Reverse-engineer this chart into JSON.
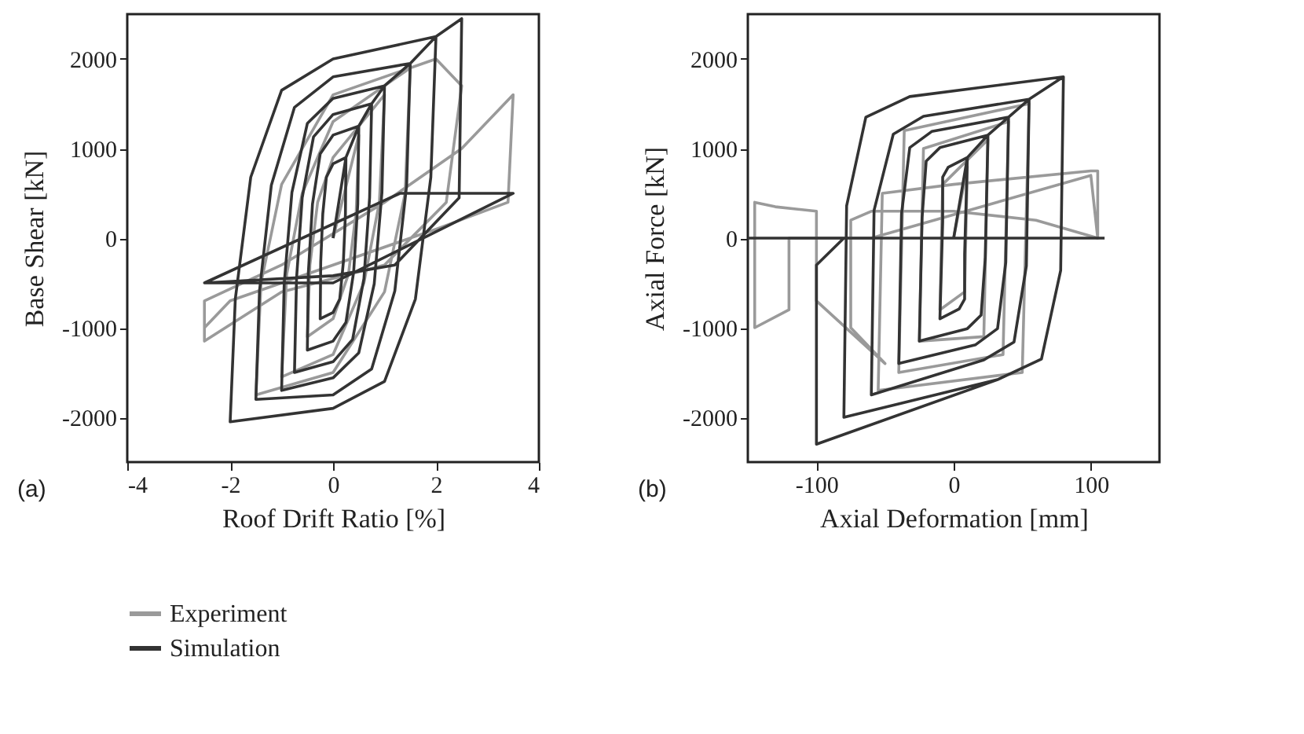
{
  "chart_data": [
    {
      "type": "line",
      "xlabel": "Roof Drift Ratio [%]",
      "ylabel": "Base Shear [kN]",
      "annotations": [
        "(a)"
      ],
      "xlim": [
        -4,
        4
      ],
      "ylim": [
        -2500,
        2500
      ],
      "xticks": [
        -4,
        -2,
        0,
        2,
        4
      ],
      "yticks": [
        -2000,
        -1000,
        0,
        1000,
        2000
      ],
      "grid": false,
      "legend": "bottom",
      "marker": "none",
      "line_style": "solid",
      "series": [
        {
          "name": "Experiment",
          "color": "#9a9a9a",
          "x": [
            0,
            0.5,
            0.45,
            0.3,
            0,
            -0.5,
            -0.45,
            -0.3,
            0,
            1,
            0.9,
            0.6,
            0,
            -1,
            -0.9,
            -0.6,
            0,
            1.5,
            1.4,
            1,
            0,
            -1.5,
            -1.4,
            -1,
            0,
            2,
            2.5,
            2.2,
            1,
            -1,
            -2.5,
            -2.5,
            -1,
            1,
            2.5,
            3,
            3.5,
            3.4,
            2,
            0,
            -2,
            -2.5
          ],
          "values": [
            0,
            1150,
            300,
            -400,
            -900,
            -1100,
            -300,
            400,
            900,
            1600,
            400,
            -500,
            -1300,
            -1550,
            -400,
            500,
            1300,
            1900,
            500,
            -600,
            -1500,
            -1750,
            -500,
            600,
            1600,
            2000,
            1700,
            400,
            -300,
            -600,
            -1150,
            -700,
            -300,
            400,
            1000,
            1300,
            1600,
            400,
            100,
            -300,
            -700,
            -1000
          ]
        },
        {
          "name": "Simulation",
          "color": "#333333",
          "x": [
            0,
            0.25,
            0.24,
            0.2,
            0.13,
            0,
            -0.25,
            -0.24,
            -0.2,
            -0.13,
            0,
            0.25,
            0.5,
            0.48,
            0.4,
            0.25,
            0,
            -0.5,
            -0.48,
            -0.4,
            -0.25,
            0,
            0.5,
            0.75,
            0.71,
            0.6,
            0.38,
            0,
            -0.75,
            -0.71,
            -0.6,
            -0.38,
            0,
            0.75,
            1,
            0.95,
            0.8,
            0.5,
            0,
            -1,
            -0.95,
            -0.8,
            -0.5,
            0,
            1,
            1.5,
            1.43,
            1.2,
            0.75,
            0,
            -1.5,
            -1.43,
            -1.2,
            -0.75,
            0,
            1.5,
            2,
            1.9,
            1.6,
            1,
            0,
            -2,
            -1.9,
            -1.6,
            -1,
            0,
            2,
            2.5,
            2.45,
            1.2,
            0,
            -2.5,
            0,
            3.5,
            1.3,
            -2.5
          ],
          "values": [
            0,
            900,
            270,
            -270,
            -680,
            -830,
            -900,
            -270,
            270,
            680,
            830,
            900,
            1250,
            380,
            -380,
            -940,
            -1150,
            -1250,
            -380,
            380,
            940,
            1150,
            1250,
            1500,
            450,
            -450,
            -1130,
            -1380,
            -1500,
            -450,
            450,
            1130,
            1380,
            1500,
            1700,
            510,
            -510,
            -1280,
            -1560,
            -1700,
            -510,
            510,
            1280,
            1560,
            1700,
            1950,
            590,
            -590,
            -1460,
            -1750,
            -1800,
            -590,
            590,
            1460,
            1800,
            1950,
            2250,
            680,
            -680,
            -1600,
            -1900,
            -2050,
            -680,
            680,
            1650,
            2000,
            2250,
            2450,
            450,
            -300,
            -420,
            -500,
            -500,
            500,
            500,
            -500
          ]
        }
      ]
    },
    {
      "type": "line",
      "xlabel": "Axial Deformation [mm]",
      "ylabel": "Axial Force [kN]",
      "annotations": [
        "(b)"
      ],
      "xlim": [
        -150,
        150
      ],
      "ylim": [
        -2500,
        2500
      ],
      "xticks": [
        -100,
        0,
        100
      ],
      "yticks": [
        -2000,
        -1000,
        0,
        1000,
        2000
      ],
      "grid": false,
      "legend": "bottom",
      "marker": "none",
      "line_style": "solid",
      "series": [
        {
          "name": "Experiment",
          "color": "#9a9a9a",
          "x": [
            0,
            10,
            8,
            -10,
            -8,
            25,
            22,
            -25,
            -22,
            40,
            36,
            -40,
            -36,
            55,
            50,
            -55,
            -52,
            0,
            100,
            105,
            105,
            60,
            0,
            -60,
            -75,
            -75,
            -50,
            -100,
            -100,
            -130,
            -145,
            -145,
            -120,
            -120,
            -60,
            100,
            105
          ],
          "values": [
            0,
            800,
            -600,
            -800,
            600,
            1100,
            -1100,
            -1150,
            1000,
            1300,
            -1300,
            -1500,
            1200,
            1500,
            -1500,
            -1700,
            500,
            600,
            750,
            750,
            0,
            200,
            300,
            300,
            200,
            -1000,
            -1400,
            -700,
            300,
            350,
            400,
            -1000,
            -800,
            0,
            0,
            700,
            0
          ]
        },
        {
          "name": "Simulation",
          "color": "#333333",
          "x": [
            0,
            10,
            8,
            8,
            4,
            -10,
            -8,
            -8,
            -4,
            10,
            25,
            23,
            20,
            10,
            -25,
            -23,
            -20,
            -10,
            25,
            40,
            38,
            32,
            16,
            -40,
            -38,
            -32,
            -16,
            40,
            55,
            53,
            44,
            22,
            -60,
            -58,
            -44,
            -22,
            55,
            80,
            78,
            64,
            32,
            -80,
            -78,
            -64,
            -32,
            80,
            78,
            64,
            32,
            -100,
            -100,
            -80,
            -150,
            110
          ],
          "values": [
            0,
            900,
            -180,
            -680,
            -790,
            -900,
            180,
            680,
            790,
            900,
            1150,
            -230,
            -860,
            -1010,
            -1150,
            230,
            860,
            1010,
            1150,
            1350,
            -270,
            -1010,
            -1190,
            -1400,
            270,
            1010,
            1190,
            1350,
            1550,
            -310,
            -1160,
            -1360,
            -1750,
            310,
            1160,
            1360,
            1550,
            1800,
            -360,
            -1350,
            -1580,
            -2000,
            360,
            1350,
            1580,
            1800,
            -360,
            -1350,
            -1580,
            -2300,
            -300,
            0,
            0,
            0
          ]
        }
      ]
    }
  ]
}
